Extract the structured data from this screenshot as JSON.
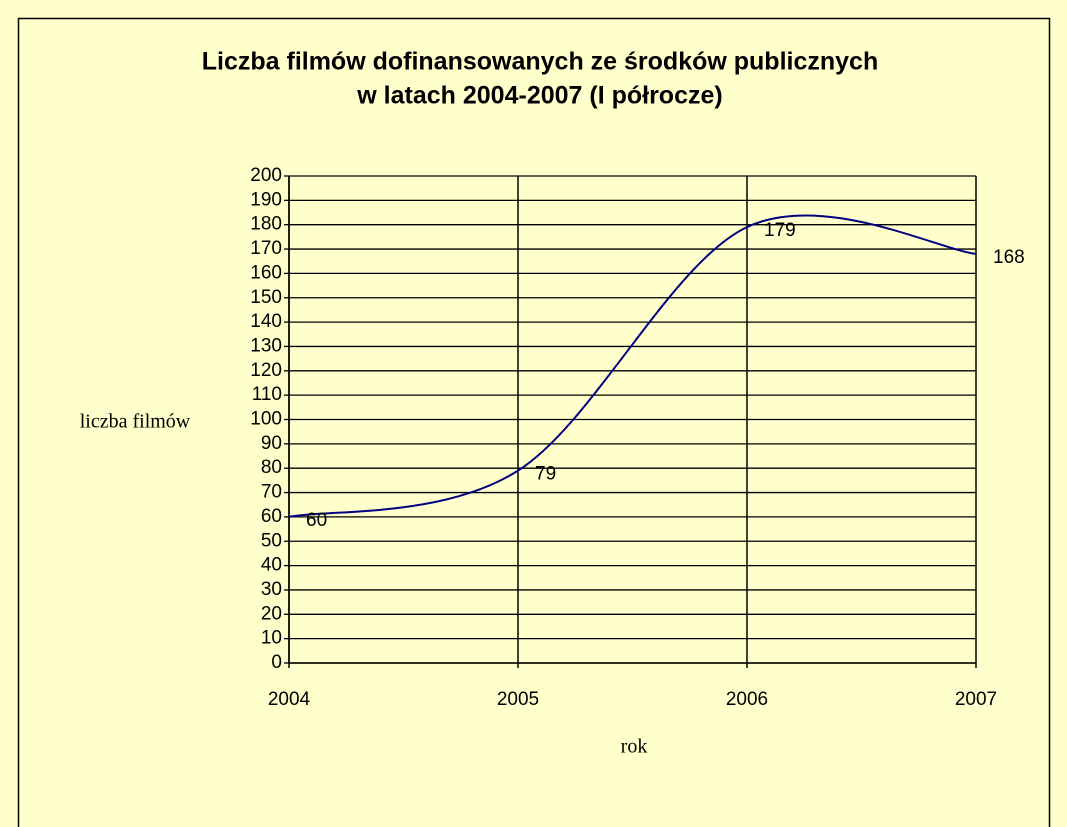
{
  "chart_data": {
    "type": "line",
    "title": [
      "Liczba filmów  dofinansowanych ze środków publicznych",
      "w latach 2004-2007 (I półrocze)"
    ],
    "x_label": "rok",
    "y_label": "liczba filmów",
    "x": [
      2004,
      2005,
      2006,
      2007
    ],
    "series": [
      {
        "name": "liczba filmów",
        "color": "#000080",
        "values": [
          60,
          79,
          179,
          168
        ]
      }
    ],
    "xlim": [
      2004,
      2007
    ],
    "xticks": [
      2004,
      2005,
      2006,
      2007
    ],
    "ylim": [
      0,
      200
    ],
    "yticks": [
      0,
      10,
      20,
      30,
      40,
      50,
      60,
      70,
      80,
      90,
      100,
      110,
      120,
      130,
      140,
      150,
      160,
      170,
      180,
      190,
      200
    ],
    "grid": true,
    "smooth": true
  }
}
